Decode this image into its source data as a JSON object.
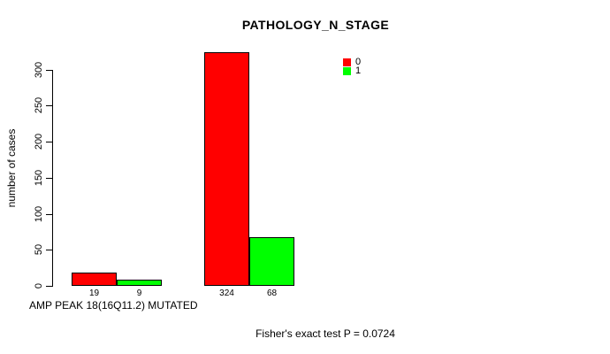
{
  "chart_data": {
    "type": "bar",
    "title": "PATHOLOGY_N_STAGE",
    "ylabel": "number of cases",
    "xlabel": "AMP PEAK 18(16Q11.2) MUTATED",
    "annotation": "Fisher's exact test P = 0.0724",
    "series": [
      {
        "name": "0",
        "color": "#ff0000",
        "values": [
          19,
          324
        ]
      },
      {
        "name": "1",
        "color": "#00ff00",
        "values": [
          9,
          68
        ]
      }
    ],
    "bar_value_labels": [
      "19",
      "9",
      "324",
      "68"
    ],
    "yticks": [
      0,
      50,
      100,
      150,
      200,
      250,
      300
    ],
    "ylim": [
      0,
      324
    ],
    "grid": false,
    "legend_position": "top-right",
    "background": "#ffffff",
    "bar_border_color": "#000000"
  }
}
